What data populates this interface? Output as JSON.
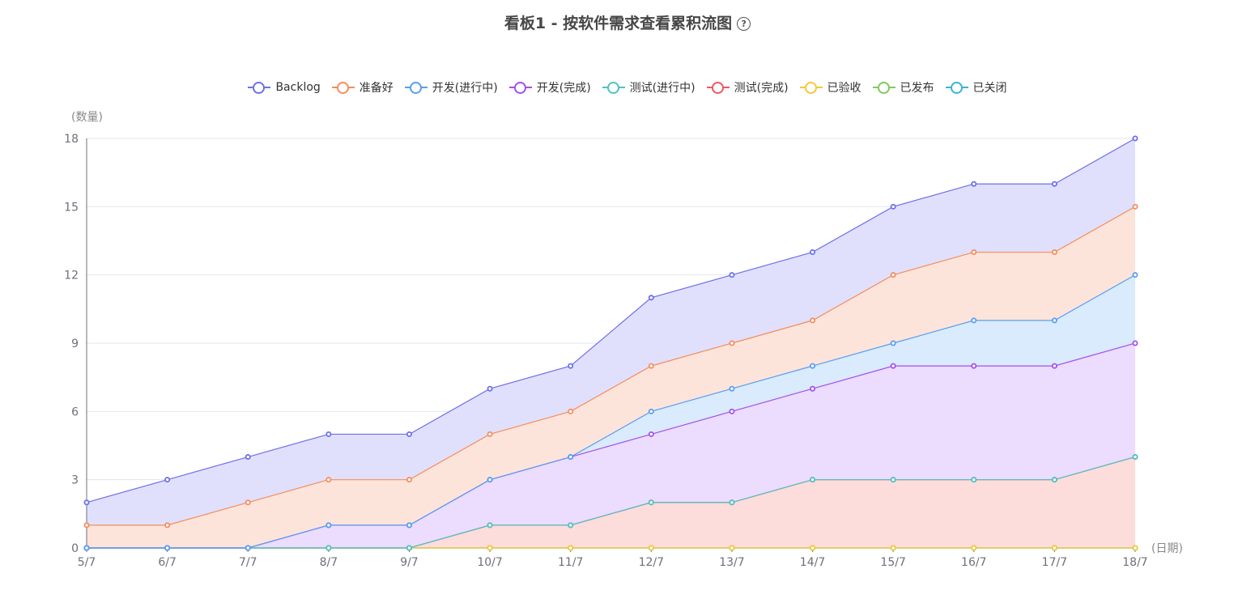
{
  "header": {
    "title": "看板1 - 按软件需求查看累积流图",
    "help_icon": "?"
  },
  "chart_data": {
    "type": "area",
    "title": "看板1 - 按软件需求查看累积流图",
    "xlabel": "(日期)",
    "ylabel": "(数量)",
    "ylim": [
      0,
      18
    ],
    "yticks": [
      0,
      3,
      6,
      9,
      12,
      15,
      18
    ],
    "grid": true,
    "legend_position": "top",
    "categories": [
      "5/7",
      "6/7",
      "7/7",
      "8/7",
      "9/7",
      "10/7",
      "11/7",
      "12/7",
      "13/7",
      "14/7",
      "15/7",
      "16/7",
      "17/7",
      "18/7"
    ],
    "series": [
      {
        "name": "Backlog",
        "color": "#6e70e8",
        "fill": "#e0e0fd",
        "values": [
          2,
          3,
          4,
          5,
          5,
          7,
          8,
          11,
          12,
          13,
          15,
          16,
          16,
          18
        ]
      },
      {
        "name": "准备好",
        "color": "#f58d5d",
        "fill": "#fde4db",
        "values": [
          1,
          1,
          2,
          3,
          3,
          5,
          6,
          8,
          9,
          10,
          12,
          13,
          13,
          15
        ]
      },
      {
        "name": "开发(进行中)",
        "color": "#5a9ef0",
        "fill": "#d9ebfc",
        "values": [
          0,
          0,
          0,
          1,
          1,
          3,
          4,
          6,
          7,
          8,
          9,
          10,
          10,
          12
        ]
      },
      {
        "name": "开发(完成)",
        "color": "#a44ff0",
        "fill": "#ecdcfd",
        "values": [
          0,
          0,
          0,
          1,
          1,
          3,
          4,
          5,
          6,
          7,
          8,
          8,
          8,
          9
        ]
      },
      {
        "name": "测试(进行中)",
        "color": "#4fc3c3",
        "fill": "#fddcdc",
        "values": [
          0,
          0,
          0,
          0,
          0,
          1,
          1,
          2,
          2,
          3,
          3,
          3,
          3,
          4
        ]
      },
      {
        "name": "测试(完成)",
        "color": "#f0585f",
        "fill": "#fddcdc",
        "values": [
          0,
          0,
          0,
          0,
          0,
          1,
          1,
          2,
          2,
          3,
          3,
          3,
          3,
          4
        ]
      },
      {
        "name": "已验收",
        "color": "#f5c93a",
        "fill": "#fdf3d0",
        "values": [
          0,
          0,
          0,
          0,
          0,
          0,
          0,
          0,
          0,
          0,
          0,
          0,
          0,
          0
        ]
      },
      {
        "name": "已发布",
        "color": "#7ecb5f",
        "fill": "#e4f5dc",
        "values": [
          0,
          0,
          0,
          0,
          0,
          0,
          0,
          0,
          0,
          0,
          0,
          0,
          0,
          0
        ]
      },
      {
        "name": "已关闭",
        "color": "#3bb4d4",
        "fill": "#d6eef6",
        "values": [
          0,
          0,
          0,
          0,
          0,
          0,
          0,
          0,
          0,
          0,
          0,
          0,
          0,
          0
        ]
      }
    ]
  }
}
